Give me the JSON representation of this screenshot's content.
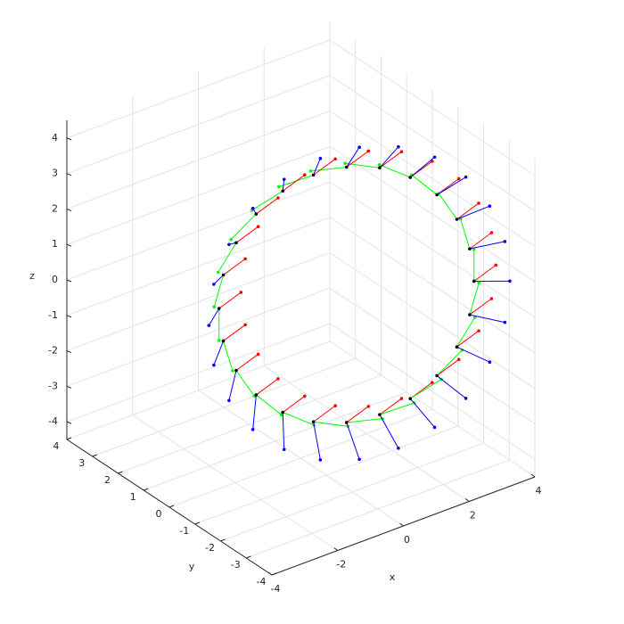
{
  "chart_data": {
    "type": "frames3d",
    "xlabel": "x",
    "ylabel": "y",
    "zlabel": "z",
    "xlim": [
      -4,
      4
    ],
    "ylim": [
      -4,
      4
    ],
    "zlim": [
      -4.5,
      4.5
    ],
    "xticks": [
      -4,
      -2,
      0,
      2,
      4
    ],
    "yticks": [
      -4,
      -3,
      -2,
      -1,
      0,
      1,
      2,
      3,
      4
    ],
    "zticks": [
      -4,
      -3,
      -2,
      -1,
      0,
      1,
      2,
      3,
      4
    ],
    "grid": true,
    "origin_color": "#000000",
    "origin": {
      "x": [
        3.88,
        3.78,
        3.49,
        3.04,
        2.44,
        1.75,
        1,
        0.25,
        -0.44,
        -1.04,
        -1.49,
        -1.78,
        -1.88,
        -1.78,
        -1.49,
        -1.04,
        -0.44,
        0.25,
        1,
        1.75,
        2.44,
        3.04,
        3.49,
        3.78
      ],
      "y": [
        -1.78,
        -1.74,
        -1.61,
        -1.41,
        -1.14,
        -0.83,
        -0.5,
        -0.17,
        0.14,
        0.41,
        0.61,
        0.74,
        0.78,
        0.74,
        0.61,
        0.41,
        0.14,
        -0.17,
        -0.5,
        -0.83,
        -1.14,
        -1.41,
        -1.61,
        -1.74
      ],
      "z": [
        0,
        0.93,
        1.8,
        2.55,
        3.12,
        3.48,
        3.6,
        3.48,
        3.12,
        2.55,
        1.8,
        0.93,
        0,
        -0.93,
        -1.8,
        -2.55,
        -3.12,
        -3.48,
        -3.6,
        -3.48,
        -3.12,
        -2.55,
        -1.8,
        -0.93
      ]
    },
    "series": [
      {
        "color": "#ff0000",
        "dx": [
          0.9,
          0.9,
          0.9,
          0.9,
          0.9,
          0.9,
          0.9,
          0.9,
          0.9,
          0.9,
          0.9,
          0.9,
          0.9,
          0.9,
          0.9,
          0.9,
          0.9,
          0.9,
          0.9,
          0.9,
          0.9,
          0.9,
          0.9,
          0.9
        ],
        "dy": [
          0.3,
          0.3,
          0.3,
          0.3,
          0.3,
          0.3,
          0.3,
          0.3,
          0.3,
          0.3,
          0.3,
          0.3,
          0.3,
          0.3,
          0.3,
          0.3,
          0.3,
          0.3,
          0.3,
          0.3,
          0.3,
          0.3,
          0.3,
          0.3
        ],
        "dz": [
          0,
          0,
          0,
          0,
          0,
          0,
          0,
          0,
          0,
          0,
          0,
          0,
          0,
          0,
          0,
          0,
          0,
          0,
          0,
          0,
          0,
          0,
          0,
          0
        ]
      },
      {
        "color": "#00ff00",
        "dx": [
          0,
          -0.21,
          -0.41,
          -0.57,
          -0.7,
          -0.78,
          -0.81,
          -0.78,
          -0.7,
          -0.57,
          -0.41,
          -0.21,
          0,
          0.21,
          0.41,
          0.57,
          0.7,
          0.78,
          0.81,
          0.78,
          0.7,
          0.57,
          0.41,
          0.21
        ],
        "dy": [
          0,
          0.09,
          0.18,
          0.25,
          0.31,
          0.35,
          0.36,
          0.35,
          0.31,
          0.25,
          0.18,
          0.09,
          0,
          -0.09,
          -0.18,
          -0.25,
          -0.31,
          -0.35,
          -0.36,
          -0.35,
          -0.31,
          -0.25,
          -0.18,
          -0.09
        ],
        "dz": [
          0.9,
          0.87,
          0.78,
          0.64,
          0.45,
          0.23,
          0,
          -0.23,
          -0.45,
          -0.64,
          -0.78,
          -0.87,
          -0.9,
          -0.87,
          -0.78,
          -0.64,
          -0.45,
          -0.23,
          0,
          0.23,
          0.45,
          0.64,
          0.78,
          0.87
        ]
      },
      {
        "color": "#0000ff",
        "dx": [
          0.7,
          0.68,
          0.61,
          0.49,
          0.35,
          0.18,
          0,
          -0.18,
          -0.35,
          -0.49,
          -0.61,
          -0.68,
          -0.7,
          -0.68,
          -0.61,
          -0.49,
          -0.35,
          -0.18,
          0,
          0.18,
          0.35,
          0.49,
          0.61,
          0.68
        ],
        "dy": [
          -0.5,
          -0.5,
          -0.5,
          -0.5,
          -0.5,
          -0.5,
          -0.5,
          -0.5,
          -0.5,
          -0.5,
          -0.5,
          -0.5,
          -0.5,
          -0.5,
          -0.5,
          -0.5,
          -0.5,
          -0.5,
          -0.5,
          -0.5,
          -0.5,
          -0.5,
          -0.5,
          -0.5
        ],
        "dz": [
          0,
          0.21,
          0.4,
          0.57,
          0.69,
          0.77,
          0.8,
          0.77,
          0.69,
          0.57,
          0.4,
          0.21,
          0,
          -0.21,
          -0.4,
          -0.57,
          -0.69,
          -0.77,
          -0.8,
          -0.77,
          -0.69,
          -0.57,
          -0.4,
          -0.21
        ]
      }
    ]
  }
}
